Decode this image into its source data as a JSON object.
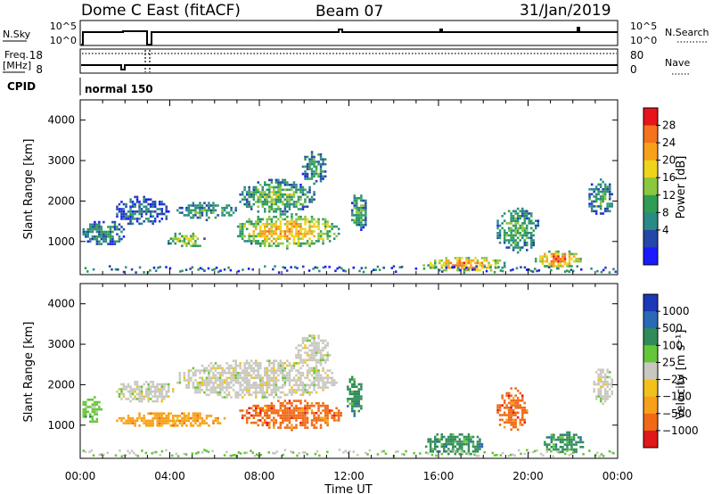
{
  "header": {
    "radar": "Dome C East (fitACF)",
    "beam": "Beam 07",
    "date": "31/Jan/2019"
  },
  "top_panels": {
    "nsky_label": "N.Sky",
    "nsearch_label": "N.Search",
    "nsky_ticks": [
      "10^5",
      "10^0"
    ],
    "nsearch_ticks": [
      "10^5",
      "10^0"
    ],
    "freq_label_line1": "Freq.",
    "freq_label_line2": "[MHz]",
    "freq_ticks": [
      "18",
      "8"
    ],
    "nave_label": "Nave",
    "nave_ticks": [
      "80",
      "0"
    ],
    "cpid_label": "CPID",
    "cpid_value": "normal 150"
  },
  "chart_data": [
    {
      "type": "heatmap",
      "name": "power-panel",
      "quantity": "Power",
      "ylabel": "Slant Range [km]",
      "xlabel": "Time UT",
      "colorbar_label": "Power [dB]",
      "colorbar_ticks": [
        "28",
        "24",
        "20",
        "16",
        "12",
        "8",
        "4"
      ],
      "colorbar_colors": [
        "#e8141c",
        "#f4731c",
        "#f7a11a",
        "#efd51a",
        "#8dc63f",
        "#2f9e53",
        "#2a8a86",
        "#2446a8",
        "#1a1aff"
      ],
      "y_ticks": [
        "4000",
        "3000",
        "2000",
        "1000"
      ],
      "y_values": [
        4000,
        3000,
        2000,
        1000
      ],
      "ylim": [
        180,
        4500
      ],
      "xlim": [
        0,
        24
      ],
      "x_ticks": [
        "00:00",
        "04:00",
        "08:00",
        "12:00",
        "16:00",
        "20:00",
        "00:00"
      ],
      "x_values": [
        0,
        4,
        8,
        12,
        16,
        20,
        24
      ],
      "regions": [
        {
          "t": [
            1.5,
            4.0
          ],
          "r": [
            1350,
            2100
          ],
          "lvl": 0.2
        },
        {
          "t": [
            4.2,
            7.0
          ],
          "r": [
            1500,
            1950
          ],
          "lvl": 0.35
        },
        {
          "t": [
            7.0,
            10.5
          ],
          "r": [
            1650,
            2500
          ],
          "lvl": 0.45
        },
        {
          "t": [
            0.0,
            2.0
          ],
          "r": [
            850,
            1500
          ],
          "lvl": 0.3
        },
        {
          "t": [
            3.8,
            5.6
          ],
          "r": [
            800,
            1200
          ],
          "lvl": 0.55
        },
        {
          "t": [
            6.8,
            11.6
          ],
          "r": [
            800,
            1650
          ],
          "lvl": 0.75
        },
        {
          "t": [
            9.8,
            11.0
          ],
          "r": [
            2400,
            3200
          ],
          "lvl": 0.35
        },
        {
          "t": [
            12.0,
            12.8
          ],
          "r": [
            1200,
            2200
          ],
          "lvl": 0.4
        },
        {
          "t": [
            15.2,
            19.0
          ],
          "r": [
            200,
            600
          ],
          "lvl": 0.8
        },
        {
          "t": [
            18.5,
            20.5
          ],
          "r": [
            700,
            1800
          ],
          "lvl": 0.4
        },
        {
          "t": [
            20.2,
            22.4
          ],
          "r": [
            300,
            750
          ],
          "lvl": 0.9
        },
        {
          "t": [
            22.6,
            23.8
          ],
          "r": [
            1600,
            2500
          ],
          "lvl": 0.35
        }
      ]
    },
    {
      "type": "heatmap",
      "name": "velocity-panel",
      "quantity": "Velocity",
      "ylabel": "Slant Range [km]",
      "xlabel": "Time UT",
      "colorbar_label": "Velocity [m s⁻¹]",
      "colorbar_ticks": [
        "1000",
        "500",
        "100",
        "25",
        "−25",
        "−100",
        "−500",
        "−1000"
      ],
      "colorbar_colors": [
        "#1a38b8",
        "#2a6ab4",
        "#2f8c58",
        "#66c63a",
        "#c8c8c0",
        "#f2c21a",
        "#f7a01a",
        "#f06a16",
        "#e0181a"
      ],
      "y_ticks": [
        "4000",
        "3000",
        "2000",
        "1000"
      ],
      "y_values": [
        4000,
        3000,
        2000,
        1000
      ],
      "ylim": [
        180,
        4500
      ],
      "xlim": [
        0,
        24
      ],
      "x_ticks": [
        "00:00",
        "04:00",
        "08:00",
        "12:00",
        "16:00",
        "20:00",
        "00:00"
      ],
      "x_values": [
        0,
        4,
        8,
        12,
        16,
        20,
        24
      ],
      "regions": [
        {
          "t": [
            1.5,
            4.2
          ],
          "r": [
            1500,
            2100
          ],
          "lvl": 4
        },
        {
          "t": [
            4.2,
            11.5
          ],
          "r": [
            1600,
            2600
          ],
          "lvl": 4
        },
        {
          "t": [
            9.5,
            11.2
          ],
          "r": [
            2400,
            3200
          ],
          "lvl": 4
        },
        {
          "t": [
            0.0,
            1.0
          ],
          "r": [
            1000,
            1700
          ],
          "lvl": 3
        },
        {
          "t": [
            1.5,
            6.5
          ],
          "r": [
            900,
            1300
          ],
          "lvl": 6
        },
        {
          "t": [
            7.0,
            11.8
          ],
          "r": [
            850,
            1600
          ],
          "lvl": 7
        },
        {
          "t": [
            11.8,
            12.6
          ],
          "r": [
            1200,
            2200
          ],
          "lvl": 2
        },
        {
          "t": [
            15.3,
            18.0
          ],
          "r": [
            200,
            800
          ],
          "lvl": 2
        },
        {
          "t": [
            18.5,
            20.0
          ],
          "r": [
            800,
            1900
          ],
          "lvl": 7
        },
        {
          "t": [
            20.6,
            22.5
          ],
          "r": [
            250,
            800
          ],
          "lvl": 2
        },
        {
          "t": [
            22.8,
            23.8
          ],
          "r": [
            1500,
            2400
          ],
          "lvl": 4
        }
      ]
    }
  ]
}
